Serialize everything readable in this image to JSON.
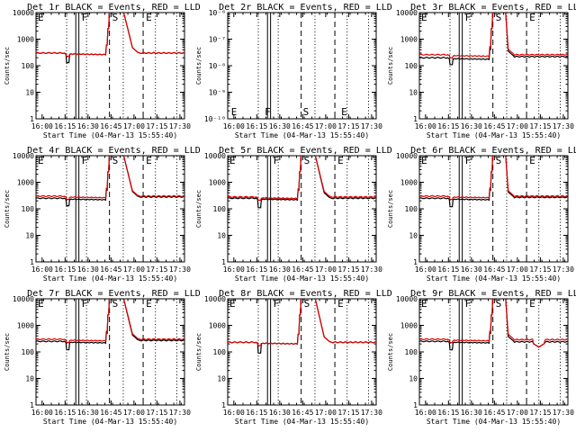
{
  "chart_data": {
    "type": "line",
    "panel_grid": {
      "rows": 3,
      "cols": 3
    },
    "x_tick_labels": [
      "16:00",
      "16:15",
      "16:30",
      "16:45",
      "17:00",
      "17:15",
      "17:30"
    ],
    "x_range_minutes": [
      0,
      97
    ],
    "xlabel": "Start Time (04-Mar-13 15:55:40)",
    "ylabel": "Counts/sec",
    "yscale": "log",
    "ylim_counts": [
      1,
      10000
    ],
    "ylim_det2": [
      1e-10,
      1e-06
    ],
    "y_tick_labels": [
      "1",
      "10",
      "100",
      "1000",
      "10000"
    ],
    "y_tick_labels_det2": [
      "10⁻¹⁰",
      "10⁻⁹",
      "10⁻⁸",
      "10⁻⁷",
      "10⁻⁶"
    ],
    "series_legend": "BLACK = Events, RED = LLD",
    "black_color": "#000000",
    "red_color": "#e00000",
    "markers": {
      "solid_minutes": [
        26,
        28
      ],
      "dashed_minutes": [
        48,
        70
      ],
      "dotted_minutes": [
        20,
        33,
        57,
        78,
        92
      ],
      "letters": [
        {
          "text": "F",
          "minute": 28
        },
        {
          "text": "S",
          "minute": 48
        },
        {
          "text": "E",
          "minute": 70
        }
      ],
      "letters_det2": [
        {
          "text": "E",
          "minute": 1
        },
        {
          "text": "F",
          "minute": 23
        },
        {
          "text": "S",
          "minute": 48
        },
        {
          "text": "E",
          "minute": 73
        }
      ]
    },
    "panels": [
      {
        "title": "Det 1r  BLACK = Events, RED = LLD",
        "base": 300,
        "dip": 130,
        "flare_end": 63,
        "black_after": 300,
        "red_after": 300
      },
      {
        "title": "Det 2r  BLACK = Events, RED = LLD",
        "empty": true
      },
      {
        "title": "Det 3r  BLACK = Events, RED = LLD",
        "base": 200,
        "red_base": 260,
        "dip": 110,
        "flare_end": 58,
        "black_after": 220,
        "red_after": 260
      },
      {
        "title": "Det 4r  BLACK = Events, RED = LLD",
        "base": 250,
        "red_base": 300,
        "dip": 130,
        "flare_end": 63,
        "black_after": 280,
        "red_after": 300
      },
      {
        "title": "Det 5r  BLACK = Events, RED = LLD",
        "base": 250,
        "red_base": 280,
        "dip": 110,
        "flare_end": 63,
        "black_after": 250,
        "red_after": 280
      },
      {
        "title": "Det 6r  BLACK = Events, RED = LLD",
        "base": 250,
        "red_base": 300,
        "dip": 120,
        "flare_end": 58,
        "black_after": 270,
        "red_after": 300
      },
      {
        "title": "Det 7r  BLACK = Events, RED = LLD",
        "base": 250,
        "red_base": 300,
        "dip": 120,
        "flare_end": 63,
        "black_after": 270,
        "red_after": 300
      },
      {
        "title": "Det 8r  BLACK = Events, RED = LLD",
        "base": 230,
        "red_base": 230,
        "dip": 90,
        "flare_end": 63,
        "black_after": 230,
        "red_after": 230
      },
      {
        "title": "Det 9r  BLACK = Events, RED = LLD",
        "base": 250,
        "red_base": 300,
        "dip": 120,
        "flare_end": 58,
        "black_after": 240,
        "red_after": 290,
        "late_dip": 150
      }
    ]
  }
}
